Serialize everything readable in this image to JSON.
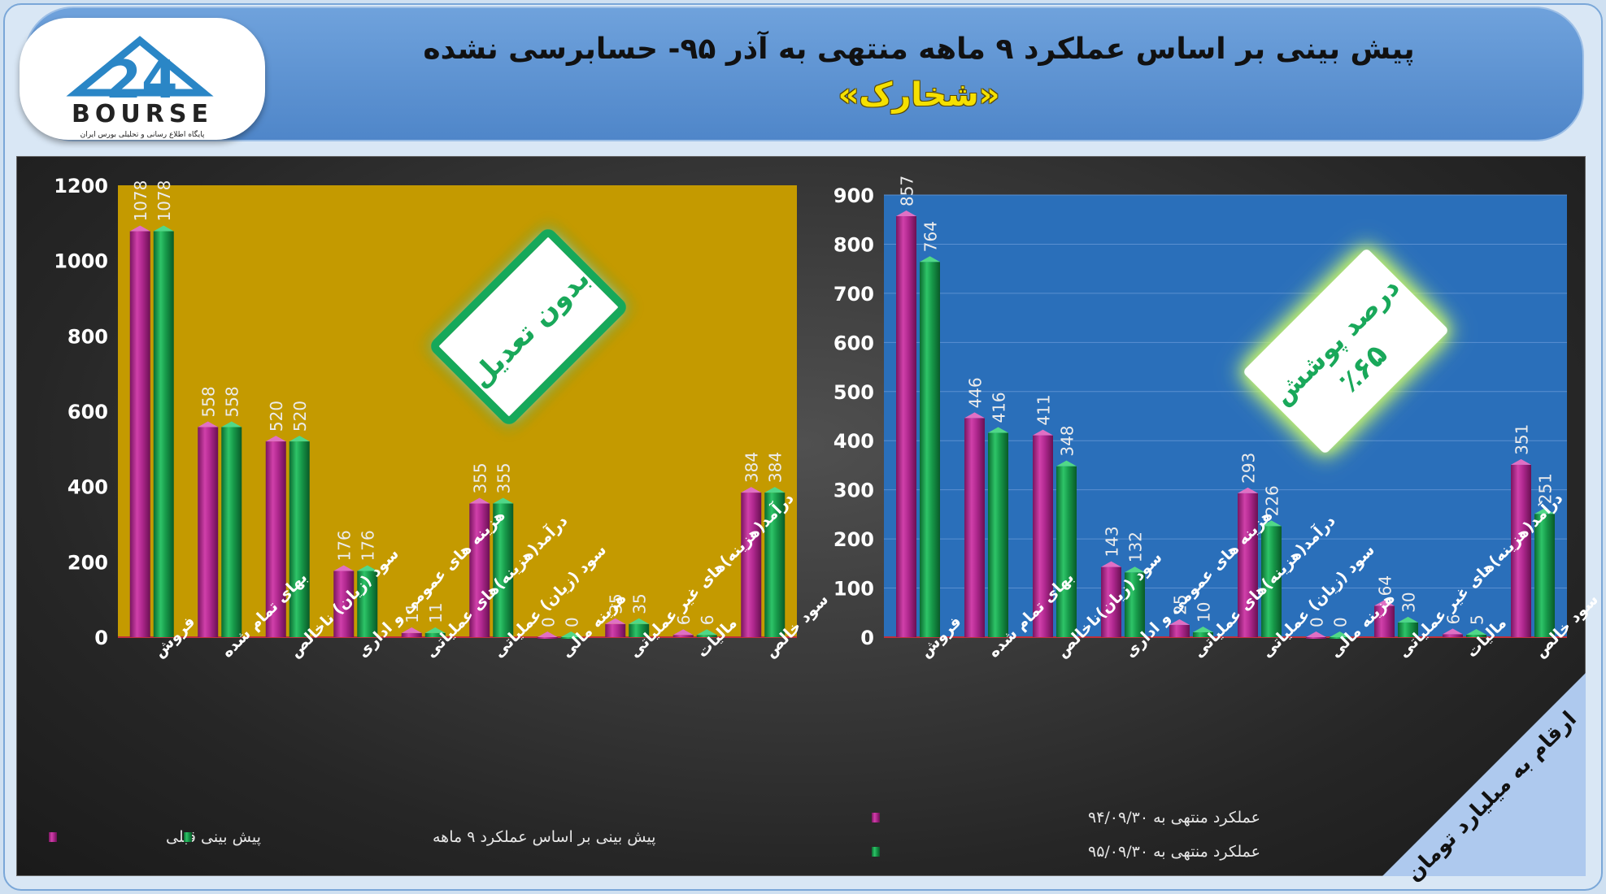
{
  "header": {
    "title": "پیش بینی بر اساس عملکرد ۹ ماهه منتهی به آذر ۹۵- حسابرسی نشده",
    "subtitle": "«شخارک»",
    "logo_text": "BOURSE",
    "logo_number": "24",
    "logo_caption": "پایگاه اطلاع رسانی و تحلیلی بورس ایران"
  },
  "badges": {
    "left": "بدون تعدیل",
    "right_line1": "درصد پوشش",
    "right_line2": "٪۶۵"
  },
  "note": "ارقام به میلیارد تومان",
  "colors": {
    "magenta": "#b0288f",
    "green": "#179a4a",
    "left_plot_bg": "#c49a00",
    "right_plot_bg": "#2a6fba"
  },
  "chart_data": [
    {
      "type": "bar",
      "title": "",
      "categories": [
        "فروش",
        "بهای تمام شده",
        "سود (زیان) ناخالص",
        "هزینه های عمومی و اداری",
        "درآمد(هزینه)های عملیاتی",
        "سود (زیان) عملیاتی",
        "هزینه مالی",
        "درآمد(هزینه)های غیر عملیاتی",
        "مالیات",
        "سود خالص"
      ],
      "series": [
        {
          "name": "پیش بینی قبلی",
          "values": [
            1078,
            558,
            520,
            176,
            11,
            355,
            0,
            35,
            6,
            384
          ]
        },
        {
          "name": "پیش بینی بر اساس عملکرد ۹ ماهه",
          "values": [
            1078,
            558,
            520,
            176,
            11,
            355,
            0,
            35,
            6,
            384
          ]
        }
      ],
      "ylim": [
        0,
        1200
      ],
      "yticks": [
        0,
        200,
        400,
        600,
        800,
        1000,
        1200
      ],
      "legend": "bottom",
      "grid": false
    },
    {
      "type": "bar",
      "title": "",
      "categories": [
        "فروش",
        "بهای تمام شده",
        "سود (زیان)ناخالص",
        "هزینه های عمومی و اداری",
        "درآمد(هزینه)های عملیاتی",
        "سود (زیان) عملیاتی",
        "هزینه مالی",
        "درآمد(هزینه)های غیر عملیاتی",
        "مالیات",
        "سود خالص"
      ],
      "series": [
        {
          "name": "عملکرد منتهی به ۹۴/۰۹/۳۰",
          "values": [
            857,
            446,
            411,
            143,
            25,
            293,
            0,
            64,
            6,
            351
          ]
        },
        {
          "name": "عملکرد منتهی به ۹۵/۰۹/۳۰",
          "values": [
            764,
            416,
            348,
            132,
            10,
            226,
            0,
            30,
            5,
            251
          ]
        }
      ],
      "ylim": [
        0,
        900
      ],
      "yticks": [
        0,
        100,
        200,
        300,
        400,
        500,
        600,
        700,
        800,
        900
      ],
      "legend": "bottom-left",
      "grid": true
    }
  ]
}
